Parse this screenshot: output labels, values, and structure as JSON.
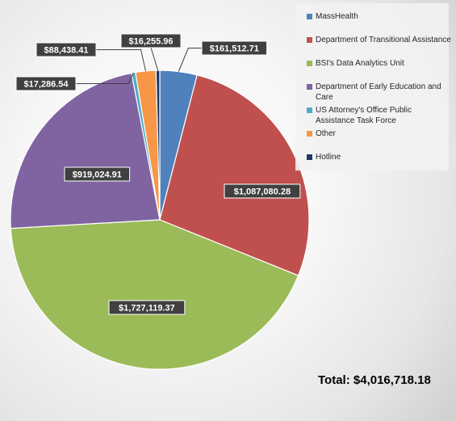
{
  "chart_data": {
    "type": "pie",
    "series": [
      {
        "name": "MassHealth",
        "value": 161512.71,
        "label": "$161,512.71",
        "color": "#4f81bd"
      },
      {
        "name": "Department of Transitional Assistance",
        "value": 1087080.28,
        "label": "$1,087,080.28",
        "color": "#c0504d"
      },
      {
        "name": "BSI's Data Analytics Unit",
        "value": 1727119.37,
        "label": "$1,727,119.37",
        "color": "#9bbb59"
      },
      {
        "name": "Department of Early Education and Care",
        "value": 919024.91,
        "label": "$919,024.91",
        "color": "#8064a2"
      },
      {
        "name": "US Attorney's Office Public Assistance Task Force",
        "value": 17286.54,
        "label": "$17,286.54",
        "color": "#4bacc6"
      },
      {
        "name": "Other",
        "value": 88438.41,
        "label": "$88,438.41",
        "color": "#f79646"
      },
      {
        "name": "Hotline",
        "value": 16255.96,
        "label": "$16,255.96",
        "color": "#1f3864"
      }
    ],
    "legend": "top-right",
    "total_text": "Total: $4,016,718.18"
  }
}
